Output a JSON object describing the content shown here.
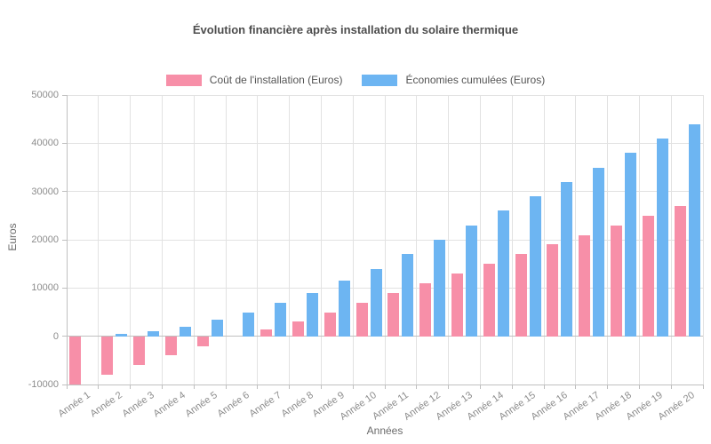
{
  "title": "Évolution financière après installation du solaire thermique",
  "axis": {
    "x_title": "Années",
    "y_title": "Euros",
    "y_tick_labels": [
      "50000",
      "40000",
      "30000",
      "20000",
      "10000",
      "0",
      "-10000"
    ]
  },
  "chart_data": {
    "type": "bar",
    "title": "Évolution financière après installation du solaire thermique",
    "categories": [
      "Année 1",
      "Année 2",
      "Année 3",
      "Année 4",
      "Année 5",
      "Année 6",
      "Année 7",
      "Année 8",
      "Année 9",
      "Année 10",
      "Année 11",
      "Année 12",
      "Année 13",
      "Année 14",
      "Année 15",
      "Année 16",
      "Année 17",
      "Année 18",
      "Année 19",
      "Année 20"
    ],
    "series": [
      {
        "name": "Coût de l'installation (Euros)",
        "color": "#f78fa8",
        "values": [
          -10000,
          -8000,
          -6000,
          -4000,
          -2000,
          0,
          1500,
          3000,
          5000,
          7000,
          9000,
          11000,
          13000,
          15000,
          17000,
          19000,
          21000,
          23000,
          25000,
          27000
        ]
      },
      {
        "name": "Économies cumulées (Euros)",
        "color": "#6db5f2",
        "values": [
          0,
          500,
          1000,
          2000,
          3500,
          5000,
          7000,
          9000,
          11500,
          14000,
          17000,
          20000,
          23000,
          26000,
          29000,
          32000,
          35000,
          38000,
          41000,
          44000
        ]
      }
    ],
    "xlabel": "Années",
    "ylabel": "Euros",
    "ylim": [
      -10000,
      50000
    ],
    "ytick_step": 10000,
    "grid": true,
    "legend_position": "top"
  }
}
